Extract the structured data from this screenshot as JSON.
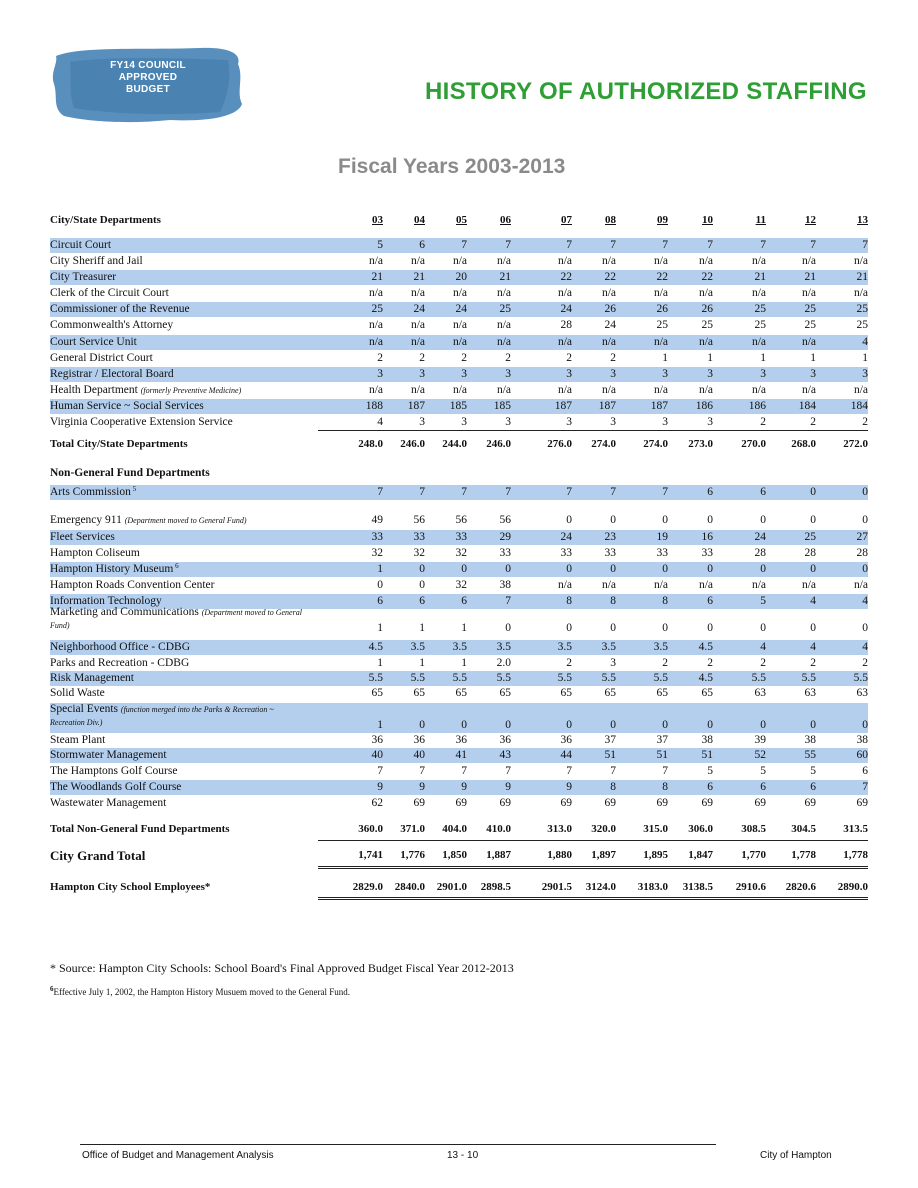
{
  "badge": {
    "lines": [
      "FY14 COUNCIL",
      "APPROVED",
      "BUDGET"
    ],
    "color": "#4a86b7"
  },
  "title": "HISTORY OF AUTHORIZED STAFFING",
  "subtitle": "Fiscal Years 2003-2013",
  "header": {
    "label": "City/State Departments",
    "years": [
      "03",
      "04",
      "05",
      "06",
      "07",
      "08",
      "09",
      "10",
      "11",
      "12",
      "13"
    ]
  },
  "city_state": [
    {
      "name": "Circuit Court",
      "values": [
        "5",
        "6",
        "7",
        "7",
        "7",
        "7",
        "7",
        "7",
        "7",
        "7",
        "7"
      ]
    },
    {
      "name": "City Sheriff and Jail",
      "values": [
        "n/a",
        "n/a",
        "n/a",
        "n/a",
        "n/a",
        "n/a",
        "n/a",
        "n/a",
        "n/a",
        "n/a",
        "n/a"
      ]
    },
    {
      "name": "City Treasurer",
      "values": [
        "21",
        "21",
        "20",
        "21",
        "22",
        "22",
        "22",
        "22",
        "21",
        "21",
        "21"
      ]
    },
    {
      "name": "Clerk of the Circuit Court",
      "values": [
        "n/a",
        "n/a",
        "n/a",
        "n/a",
        "n/a",
        "n/a",
        "n/a",
        "n/a",
        "n/a",
        "n/a",
        "n/a"
      ]
    },
    {
      "name": "Commissioner of the Revenue",
      "values": [
        "25",
        "24",
        "24",
        "25",
        "24",
        "26",
        "26",
        "26",
        "25",
        "25",
        "25"
      ]
    },
    {
      "name": "Commonwealth's Attorney",
      "values": [
        "n/a",
        "n/a",
        "n/a",
        "n/a",
        "28",
        "24",
        "25",
        "25",
        "25",
        "25",
        "25"
      ]
    },
    {
      "name": "Court Service Unit",
      "values": [
        "n/a",
        "n/a",
        "n/a",
        "n/a",
        "n/a",
        "n/a",
        "n/a",
        "n/a",
        "n/a",
        "n/a",
        "4"
      ]
    },
    {
      "name": "General District Court",
      "values": [
        "2",
        "2",
        "2",
        "2",
        "2",
        "2",
        "1",
        "1",
        "1",
        "1",
        "1"
      ]
    },
    {
      "name": "Registrar / Electoral Board",
      "values": [
        "3",
        "3",
        "3",
        "3",
        "3",
        "3",
        "3",
        "3",
        "3",
        "3",
        "3"
      ]
    },
    {
      "name": "Health Department",
      "note": "(formerly Preventive Medicine)",
      "values": [
        "n/a",
        "n/a",
        "n/a",
        "n/a",
        "n/a",
        "n/a",
        "n/a",
        "n/a",
        "n/a",
        "n/a",
        "n/a"
      ]
    },
    {
      "name": "Human Service ~ Social Services",
      "values": [
        "188",
        "187",
        "185",
        "185",
        "187",
        "187",
        "187",
        "186",
        "186",
        "184",
        "184"
      ]
    },
    {
      "name": "Virginia Cooperative Extension Service",
      "values": [
        "4",
        "3",
        "3",
        "3",
        "3",
        "3",
        "3",
        "3",
        "2",
        "2",
        "2"
      ]
    }
  ],
  "total_city_state": {
    "label": "Total City/State Departments",
    "values": [
      "248.0",
      "246.0",
      "244.0",
      "246.0",
      "276.0",
      "274.0",
      "274.0",
      "273.0",
      "270.0",
      "268.0",
      "272.0"
    ]
  },
  "ngf_title": "Non-General Fund Departments",
  "ngf": [
    {
      "name": "Arts Commission",
      "sup": "5",
      "values": [
        "7",
        "7",
        "7",
        "7",
        "7",
        "7",
        "7",
        "6",
        "6",
        "0",
        "0"
      ]
    },
    {
      "name": "Emergency 911",
      "note": "(Department moved to General Fund)",
      "values": [
        "49",
        "56",
        "56",
        "56",
        "0",
        "0",
        "0",
        "0",
        "0",
        "0",
        "0"
      ]
    },
    {
      "name": "Fleet Services",
      "values": [
        "33",
        "33",
        "33",
        "29",
        "24",
        "23",
        "19",
        "16",
        "24",
        "25",
        "27"
      ]
    },
    {
      "name": "Hampton Coliseum",
      "values": [
        "32",
        "32",
        "32",
        "33",
        "33",
        "33",
        "33",
        "33",
        "28",
        "28",
        "28"
      ]
    },
    {
      "name": "Hampton History Museum",
      "sup": "6",
      "values": [
        "1",
        "0",
        "0",
        "0",
        "0",
        "0",
        "0",
        "0",
        "0",
        "0",
        "0"
      ]
    },
    {
      "name": "Hampton Roads Convention Center",
      "values": [
        "0",
        "0",
        "32",
        "38",
        "n/a",
        "n/a",
        "n/a",
        "n/a",
        "n/a",
        "n/a",
        "n/a"
      ]
    },
    {
      "name": "Information Technology",
      "values": [
        "6",
        "6",
        "6",
        "7",
        "8",
        "8",
        "8",
        "6",
        "5",
        "4",
        "4"
      ]
    },
    {
      "name": "Marketing and Communications",
      "note": "(Department moved to General Fund)",
      "values": [
        "1",
        "1",
        "1",
        "0",
        "0",
        "0",
        "0",
        "0",
        "0",
        "0",
        "0"
      ]
    },
    {
      "name": "Neighborhood Office - CDBG",
      "values": [
        "4.5",
        "3.5",
        "3.5",
        "3.5",
        "3.5",
        "3.5",
        "3.5",
        "4.5",
        "4",
        "4",
        "4"
      ]
    },
    {
      "name": "Parks and Recreation - CDBG",
      "values": [
        "1",
        "1",
        "1",
        "2.0",
        "2",
        "3",
        "2",
        "2",
        "2",
        "2",
        "2"
      ]
    },
    {
      "name": "Risk Management",
      "values": [
        "5.5",
        "5.5",
        "5.5",
        "5.5",
        "5.5",
        "5.5",
        "5.5",
        "4.5",
        "5.5",
        "5.5",
        "5.5"
      ]
    },
    {
      "name": "Solid Waste",
      "values": [
        "65",
        "65",
        "65",
        "65",
        "65",
        "65",
        "65",
        "65",
        "63",
        "63",
        "63"
      ]
    },
    {
      "name": "Special Events",
      "note": "(function merged into the Parks & Recreation ~ Recreation Div.)",
      "values": [
        "1",
        "0",
        "0",
        "0",
        "0",
        "0",
        "0",
        "0",
        "0",
        "0",
        "0"
      ]
    },
    {
      "name": "Steam Plant",
      "values": [
        "36",
        "36",
        "36",
        "36",
        "36",
        "37",
        "37",
        "38",
        "39",
        "38",
        "38"
      ]
    },
    {
      "name": "Stormwater Management",
      "values": [
        "40",
        "40",
        "41",
        "43",
        "44",
        "51",
        "51",
        "51",
        "52",
        "55",
        "60"
      ]
    },
    {
      "name": "The Hamptons Golf Course",
      "values": [
        "7",
        "7",
        "7",
        "7",
        "7",
        "7",
        "7",
        "5",
        "5",
        "5",
        "6"
      ]
    },
    {
      "name": "The Woodlands Golf Course",
      "values": [
        "9",
        "9",
        "9",
        "9",
        "9",
        "8",
        "8",
        "6",
        "6",
        "6",
        "7"
      ]
    },
    {
      "name": "Wastewater Management",
      "values": [
        "62",
        "69",
        "69",
        "69",
        "69",
        "69",
        "69",
        "69",
        "69",
        "69",
        "69"
      ]
    }
  ],
  "total_ngf": {
    "label": "Total Non-General Fund Departments",
    "values": [
      "360.0",
      "371.0",
      "404.0",
      "410.0",
      "313.0",
      "320.0",
      "315.0",
      "306.0",
      "308.5",
      "304.5",
      "313.5"
    ]
  },
  "grand_total": {
    "label": "City Grand Total",
    "values": [
      "1,741",
      "1,776",
      "1,850",
      "1,887",
      "1,880",
      "1,897",
      "1,895",
      "1,847",
      "1,770",
      "1,778",
      "1,778"
    ]
  },
  "school": {
    "label": "Hampton City School Employees*",
    "values": [
      "2829.0",
      "2840.0",
      "2901.0",
      "2898.5",
      "2901.5",
      "3124.0",
      "3183.0",
      "3138.5",
      "2910.6",
      "2820.6",
      "2890.0"
    ]
  },
  "footnote_source": "* Source: Hampton City Schools:  School Board's Final Approved Budget Fiscal Year 2012-2013",
  "footnote_6_mark": "6",
  "footnote_6": "Effective July 1, 2002, the Hampton History Musuem moved to the General Fund.",
  "footer": {
    "left": "Office of Budget and Management Analysis",
    "center": "13 - 10",
    "right": "City of Hampton"
  },
  "colors": {
    "highlight": "#b4cfee",
    "title_green": "#2e9e35",
    "subtitle_gray": "#8a8a8a"
  }
}
